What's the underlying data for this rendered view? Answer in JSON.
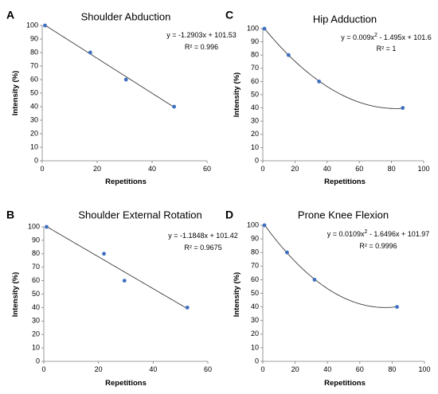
{
  "chart_data": [
    {
      "panel": "A",
      "type": "scatter",
      "title": "Shoulder Abduction",
      "xlabel": "Repetitions",
      "ylabel": "Intensity (%)",
      "xlim": [
        0,
        60
      ],
      "ylim": [
        0,
        100
      ],
      "xticks": [
        0,
        20,
        40,
        60
      ],
      "yticks": [
        0,
        10,
        20,
        30,
        40,
        50,
        60,
        70,
        80,
        90,
        100
      ],
      "points": [
        {
          "x": 1,
          "y": 100
        },
        {
          "x": 17.5,
          "y": 80
        },
        {
          "x": 30.5,
          "y": 60
        },
        {
          "x": 48,
          "y": 40
        }
      ],
      "trendline": {
        "kind": "linear",
        "coef": [
          -1.2903,
          101.53
        ],
        "x_range": [
          1,
          48
        ]
      },
      "equation": "y = -1.2903x + 101.53",
      "r2": "R² = 0.996"
    },
    {
      "panel": "C",
      "type": "scatter",
      "title": "Hip Adduction",
      "xlabel": "Repetitions",
      "ylabel": "Intensity (%)",
      "xlim": [
        0,
        100
      ],
      "ylim": [
        0,
        100
      ],
      "xticks": [
        0,
        20,
        40,
        60,
        80,
        100
      ],
      "yticks": [
        0,
        10,
        20,
        30,
        40,
        50,
        60,
        70,
        80,
        90,
        100
      ],
      "points": [
        {
          "x": 1,
          "y": 100
        },
        {
          "x": 16,
          "y": 80
        },
        {
          "x": 35,
          "y": 60
        },
        {
          "x": 87,
          "y": 40
        }
      ],
      "trendline": {
        "kind": "poly2",
        "coef": [
          0.009,
          -1.495,
          101.6
        ],
        "x_range": [
          1,
          87
        ]
      },
      "equation_parts": [
        "y = 0.009x",
        "2",
        " - 1.495x + 101.6"
      ],
      "r2": "R² = 1"
    },
    {
      "panel": "B",
      "type": "scatter",
      "title": "Shoulder External Rotation",
      "xlabel": "Repetitions",
      "ylabel": "Intensity (%)",
      "xlim": [
        0,
        60
      ],
      "ylim": [
        0,
        100
      ],
      "xticks": [
        0,
        20,
        40,
        60
      ],
      "yticks": [
        0,
        10,
        20,
        30,
        40,
        50,
        60,
        70,
        80,
        90,
        100
      ],
      "points": [
        {
          "x": 1,
          "y": 100
        },
        {
          "x": 22,
          "y": 80
        },
        {
          "x": 29.5,
          "y": 60
        },
        {
          "x": 52.5,
          "y": 40
        }
      ],
      "trendline": {
        "kind": "linear",
        "coef": [
          -1.1848,
          101.42
        ],
        "x_range": [
          1,
          52.5
        ]
      },
      "equation": "y = -1.1848x + 101.42",
      "r2": "R² = 0.9675"
    },
    {
      "panel": "D",
      "type": "scatter",
      "title": "Prone Knee Flexion",
      "xlabel": "Repetitions",
      "ylabel": "Intensity (%)",
      "xlim": [
        0,
        100
      ],
      "ylim": [
        0,
        100
      ],
      "xticks": [
        0,
        20,
        40,
        60,
        80,
        100
      ],
      "yticks": [
        0,
        10,
        20,
        30,
        40,
        50,
        60,
        70,
        80,
        90,
        100
      ],
      "points": [
        {
          "x": 1,
          "y": 100
        },
        {
          "x": 15,
          "y": 80
        },
        {
          "x": 32,
          "y": 60
        },
        {
          "x": 83,
          "y": 40
        }
      ],
      "trendline": {
        "kind": "poly2",
        "coef": [
          0.0109,
          -1.6496,
          101.97
        ],
        "x_range": [
          1,
          83
        ]
      },
      "equation_parts": [
        "y = 0.0109x",
        "2",
        " - 1.6496x + 101.97"
      ],
      "r2": "R² = 0.9996"
    }
  ],
  "colors": {
    "points": "#3e6fbf",
    "trendline": "#3c3c3c",
    "axis": "#7f7f7f"
  }
}
